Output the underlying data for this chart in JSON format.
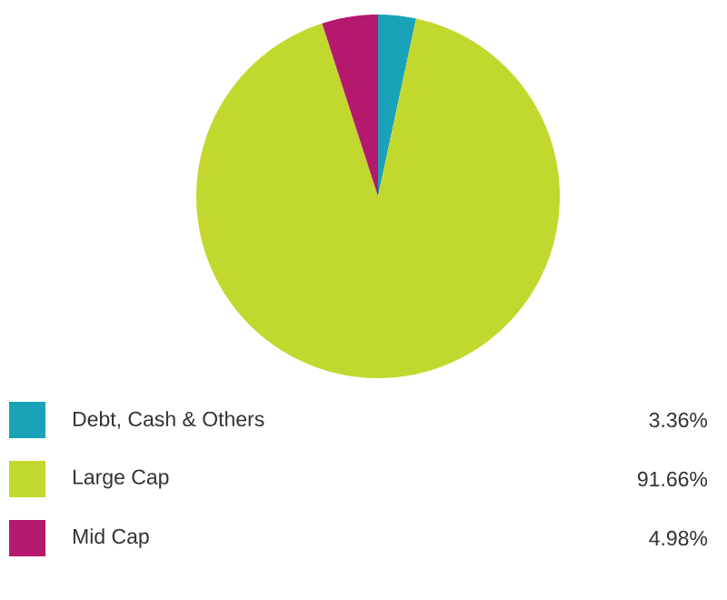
{
  "chart_data": {
    "type": "pie",
    "categories": [
      "Debt, Cash & Others",
      "Large Cap",
      "Mid Cap"
    ],
    "values": [
      3.36,
      91.66,
      4.98
    ],
    "value_labels": [
      "3.36%",
      "91.66%",
      "4.98%"
    ],
    "colors": [
      "#1aa3b8",
      "#c3d82e",
      "#b5196e"
    ],
    "legend": "bottom"
  }
}
